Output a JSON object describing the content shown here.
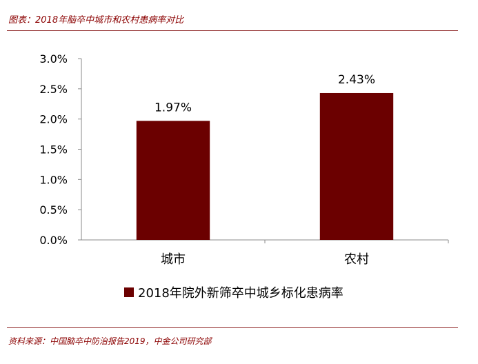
{
  "title": "图表：2018年脑卒中城市和农村患病率对比",
  "source": "资料来源：中国脑卒中防治报告2019，中金公司研究部",
  "colors": {
    "bar": "#6b0000",
    "accent": "#8b0000"
  },
  "chart_data": {
    "type": "bar",
    "categories": [
      "城市",
      "农村"
    ],
    "series": [
      {
        "name": "2018年院外新筛卒中城乡标化患病率",
        "values": [
          1.97,
          2.43
        ],
        "labels": [
          "1.97%",
          "2.43%"
        ]
      }
    ],
    "ylim": [
      0,
      3.0
    ],
    "yticks": [
      "0.0%",
      "0.5%",
      "1.0%",
      "1.5%",
      "2.0%",
      "2.5%",
      "3.0%"
    ],
    "ytick_values": [
      0,
      0.5,
      1.0,
      1.5,
      2.0,
      2.5,
      3.0
    ],
    "legend": "bottom",
    "grid": false
  }
}
